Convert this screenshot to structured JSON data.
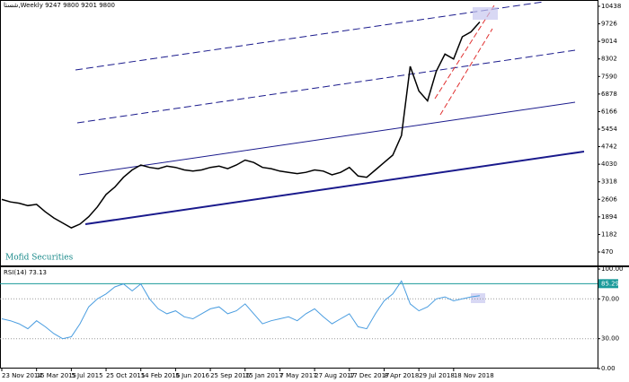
{
  "chart_data": [
    {
      "type": "line",
      "title": "شستا,Weekly  9247 9800 9201 9800",
      "annotation": "Mofid Securities",
      "color": "#000000",
      "values": [
        2600,
        2500,
        2450,
        2350,
        2400,
        2100,
        1850,
        1650,
        1450,
        1600,
        1900,
        2300,
        2800,
        3100,
        3500,
        3800,
        4000,
        3900,
        3850,
        3950,
        3900,
        3800,
        3750,
        3800,
        3900,
        3950,
        3850,
        4000,
        4200,
        4100,
        3900,
        3850,
        3750,
        3700,
        3650,
        3700,
        3800,
        3750,
        3600,
        3700,
        3900,
        3550,
        3500,
        3800,
        4100,
        4400,
        5200,
        8000,
        7000,
        6600,
        7800,
        8500,
        8300,
        9200,
        9400,
        9800
      ],
      "ylim": [
        -76,
        10693
      ],
      "yticks": [
        470,
        1182,
        1894,
        2606,
        3318,
        4030,
        4742,
        5454,
        6166,
        6878,
        7590,
        8302,
        9014,
        9726,
        10438
      ]
    },
    {
      "type": "line",
      "title": "RSI(14) 73.13",
      "color": "#4a9de0",
      "categories": [
        "23 Nov 2014",
        null,
        null,
        null,
        "15 Mar 2015",
        null,
        null,
        null,
        "5 Jul 2015",
        null,
        null,
        null,
        "25 Oct 2015",
        null,
        null,
        null,
        "14 Feb 2016",
        null,
        null,
        null,
        "5 Jun 2016",
        null,
        null,
        null,
        "25 Sep 2016",
        null,
        null,
        null,
        "15 Jan 2017",
        null,
        null,
        null,
        "7 May 2017",
        null,
        null,
        null,
        "27 Aug 2017",
        null,
        null,
        null,
        "17 Dec 2017",
        null,
        null,
        null,
        "8 Apr 2018",
        null,
        null,
        null,
        "29 Jul 2018",
        null,
        null,
        null,
        "18 Nov 2018",
        null,
        null,
        null
      ],
      "values": [
        50,
        48,
        45,
        40,
        48,
        42,
        35,
        30,
        32,
        45,
        62,
        70,
        75,
        82,
        85,
        78,
        85,
        70,
        60,
        55,
        58,
        52,
        50,
        55,
        60,
        62,
        55,
        58,
        65,
        55,
        45,
        48,
        50,
        52,
        48,
        55,
        60,
        52,
        45,
        50,
        55,
        42,
        40,
        55,
        68,
        75,
        88,
        65,
        58,
        62,
        70,
        72,
        68,
        70,
        72,
        73.13
      ],
      "ylim": [
        0,
        100
      ],
      "yticks": [
        {
          "value": 0,
          "label": "0.00"
        },
        {
          "value": 30,
          "label": "30.00"
        },
        {
          "value": 70,
          "label": "70.00"
        },
        {
          "value": 100,
          "label": "100.00"
        }
      ],
      "levels": [
        85.29
      ]
    }
  ]
}
